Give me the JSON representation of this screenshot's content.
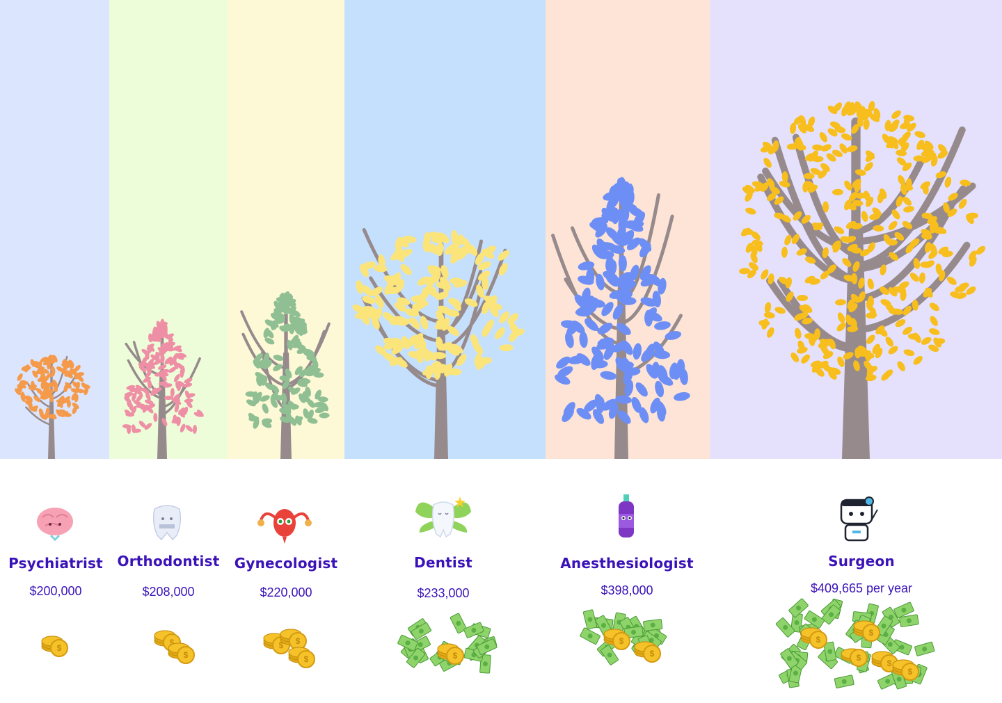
{
  "professions": [
    {
      "name": "Psychiatrist",
      "salary": "$200,000",
      "tree_color": "#f59a4a",
      "band_color": "#dbe5fd",
      "mascot": "brain-mascot-icon",
      "money": "coins-icon"
    },
    {
      "name": "Orthodontist",
      "salary": "$208,000",
      "tree_color": "#ee8fa6",
      "band_color": "#eefdd9",
      "mascot": "tooth-braces-mascot-icon",
      "money": "coins-icon"
    },
    {
      "name": "Gynecologist",
      "salary": "$220,000",
      "tree_color": "#8fbf93",
      "band_color": "#fdf8d6",
      "mascot": "uterus-mascot-icon",
      "money": "coins-icon"
    },
    {
      "name": "Dentist",
      "salary": "$233,000",
      "tree_color": "#fbe57a",
      "band_color": "#c5e0fd",
      "mascot": "tooth-fairy-mascot-icon",
      "money": "cash-and-coins-icon"
    },
    {
      "name": "Anesthesiologist",
      "salary": "$398,000",
      "tree_color": "#6d8ff5",
      "band_color": "#fde4d6",
      "mascot": "vial-mascot-icon",
      "money": "cash-and-coins-icon"
    },
    {
      "name": "Surgeon",
      "salary": "$409,665 per year",
      "tree_color": "#f7be1e",
      "band_color": "#e5e1fc",
      "mascot": "surgeon-robot-mascot-icon",
      "money": "cash-and-coins-icon"
    }
  ],
  "colors": {
    "trunk": "#968a8c",
    "text": "#3a12b8",
    "coin": "#f5c22a",
    "cash": "#8fd46a"
  }
}
